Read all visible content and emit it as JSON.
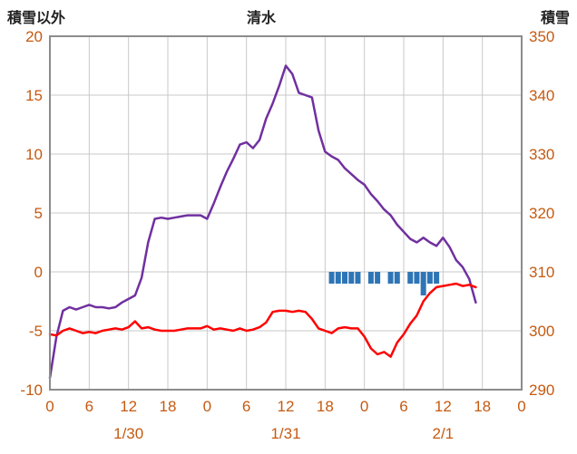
{
  "titles": {
    "left_axis_title": "積雪以外",
    "chart_title": "清水",
    "right_axis_title": "積雪"
  },
  "colors": {
    "purple_line": "#7030A0",
    "red_line": "#FF0000",
    "blue_bar": "#2E75B6",
    "tick_label": "#C55A11",
    "grid": "#C9C9C9",
    "frame": "#8C8C8C",
    "title_text": "#222222"
  },
  "chart_data": {
    "type": "line",
    "title": "清水",
    "left_axis": {
      "label": "積雪以外",
      "min": -10,
      "max": 20,
      "ticks": [
        20,
        15,
        10,
        5,
        0,
        -5,
        -10
      ]
    },
    "right_axis": {
      "label": "積雪",
      "min": 290,
      "max": 350,
      "ticks": [
        350,
        340,
        330,
        320,
        310,
        300,
        290
      ]
    },
    "x_axis": {
      "min_hour": 0,
      "max_hour": 72,
      "tick_step_hours": 6,
      "tick_labels": [
        "0",
        "6",
        "12",
        "18",
        "0",
        "6",
        "12",
        "18",
        "0",
        "6",
        "12",
        "18",
        "0"
      ],
      "date_labels": [
        {
          "label": "1/30",
          "hour": 12
        },
        {
          "label": "1/31",
          "hour": 36
        },
        {
          "label": "2/1",
          "hour": 60
        }
      ]
    },
    "grid": true,
    "series": [
      {
        "name": "purple-series",
        "type": "line",
        "color_key": "purple_line",
        "start_hour": 0,
        "values": [
          -9.0,
          -5.5,
          -3.3,
          -3.0,
          -3.2,
          -3.0,
          -2.8,
          -3.0,
          -3.0,
          -3.1,
          -3.0,
          -2.6,
          -2.3,
          -2.0,
          -0.5,
          2.5,
          4.5,
          4.6,
          4.5,
          4.6,
          4.7,
          4.8,
          4.8,
          4.8,
          4.5,
          5.8,
          7.2,
          8.5,
          9.6,
          10.8,
          11.0,
          10.5,
          11.2,
          13.0,
          14.3,
          15.8,
          17.5,
          16.8,
          15.2,
          15.0,
          14.8,
          12.0,
          10.2,
          9.8,
          9.5,
          8.8,
          8.3,
          7.8,
          7.4,
          6.6,
          6.0,
          5.3,
          4.8,
          4.0,
          3.4,
          2.8,
          2.5,
          2.9,
          2.5,
          2.2,
          2.9,
          2.1,
          1.0,
          0.4,
          -0.6,
          -2.6
        ]
      },
      {
        "name": "red-series",
        "type": "line",
        "color_key": "red_line",
        "start_hour": 0,
        "values": [
          -5.3,
          -5.4,
          -5.0,
          -4.8,
          -5.0,
          -5.2,
          -5.1,
          -5.2,
          -5.0,
          -4.9,
          -4.8,
          -4.9,
          -4.7,
          -4.2,
          -4.8,
          -4.7,
          -4.9,
          -5.0,
          -5.0,
          -5.0,
          -4.9,
          -4.8,
          -4.8,
          -4.8,
          -4.6,
          -4.9,
          -4.8,
          -4.9,
          -5.0,
          -4.8,
          -5.0,
          -4.9,
          -4.7,
          -4.3,
          -3.4,
          -3.3,
          -3.3,
          -3.4,
          -3.3,
          -3.4,
          -4.0,
          -4.8,
          -5.0,
          -5.2,
          -4.8,
          -4.7,
          -4.8,
          -4.8,
          -5.5,
          -6.5,
          -7.0,
          -6.8,
          -7.2,
          -6.0,
          -5.3,
          -4.4,
          -3.7,
          -2.5,
          -1.8,
          -1.3,
          -1.2,
          -1.1,
          -1.0,
          -1.2,
          -1.1,
          -1.3
        ]
      },
      {
        "name": "blue-bar-series",
        "type": "bar",
        "color_key": "blue_bar",
        "baseline_value": 0,
        "bars": [
          {
            "hour": 43,
            "value": -1
          },
          {
            "hour": 44,
            "value": -1
          },
          {
            "hour": 45,
            "value": -1
          },
          {
            "hour": 46,
            "value": -1
          },
          {
            "hour": 47,
            "value": -1
          },
          {
            "hour": 49,
            "value": -1
          },
          {
            "hour": 50,
            "value": -1
          },
          {
            "hour": 52,
            "value": -1
          },
          {
            "hour": 53,
            "value": -1
          },
          {
            "hour": 55,
            "value": -1
          },
          {
            "hour": 56,
            "value": -1
          },
          {
            "hour": 57,
            "value": -2
          },
          {
            "hour": 58,
            "value": -1
          },
          {
            "hour": 59,
            "value": -1
          }
        ]
      }
    ]
  }
}
